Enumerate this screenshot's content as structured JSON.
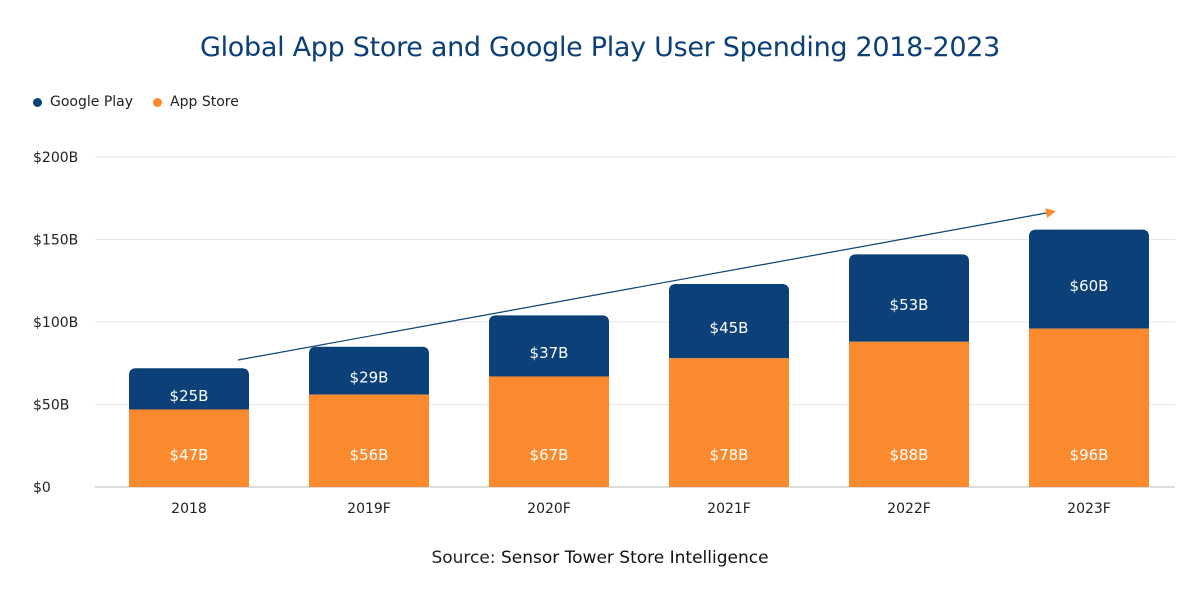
{
  "chart_data": {
    "type": "bar",
    "stacked": true,
    "title": "Global App Store and Google Play User Spending 2018-2023",
    "categories": [
      "2018",
      "2019F",
      "2020F",
      "2021F",
      "2022F",
      "2023F"
    ],
    "series": [
      {
        "name": "App Store",
        "color": "#fb8a2e",
        "values": [
          47,
          56,
          67,
          78,
          88,
          96
        ],
        "labels": [
          "$47B",
          "$56B",
          "$67B",
          "$78B",
          "$88B",
          "$96B"
        ]
      },
      {
        "name": "Google Play",
        "color": "#0b4078",
        "values": [
          25,
          29,
          37,
          45,
          53,
          60
        ],
        "labels": [
          "$25B",
          "$29B",
          "$37B",
          "$45B",
          "$53B",
          "$60B"
        ]
      }
    ],
    "ylim": [
      0,
      200
    ],
    "yticks": [
      0,
      50,
      100,
      150,
      200
    ],
    "ytick_labels": [
      "$0",
      "$50B",
      "$100B",
      "$150B",
      "$200B"
    ],
    "grid": true,
    "legend_position": "top-left",
    "legend": [
      "Google Play",
      "App Store"
    ],
    "trend_arrow": true
  },
  "source": {
    "prefix": "Source:",
    "name": "Sensor Tower Store Intelligence"
  }
}
